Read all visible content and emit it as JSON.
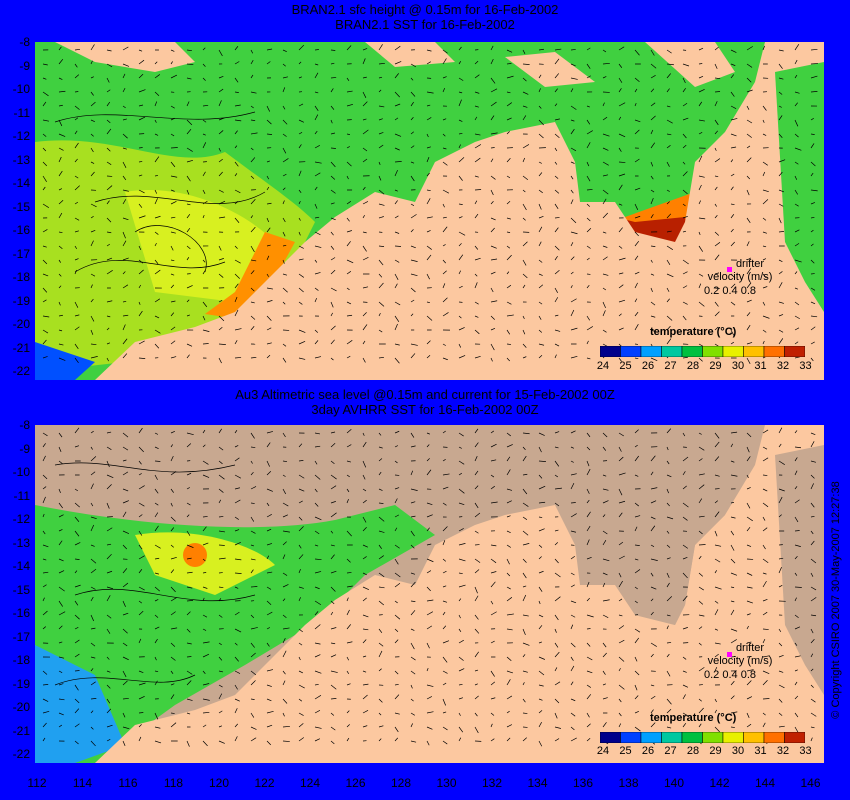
{
  "top_panel": {
    "title_line1": "BRAN2.1 sfc height @ 0.15m for 16-Feb-2002",
    "title_line2": "BRAN2.1 SST for 16-Feb-2002"
  },
  "bottom_panel": {
    "title_line1": "Au3 Altimetric sea level  @0.15m and current for 15-Feb-2002 00Z",
    "title_line2": "3day AVHRR SST for 16-Feb-2002 00Z"
  },
  "latitudes": [
    "-8",
    "-9",
    "-10",
    "-11",
    "-12",
    "-13",
    "-14",
    "-15",
    "-16",
    "-17",
    "-18",
    "-19",
    "-20",
    "-21",
    "-22"
  ],
  "longitudes": [
    "112",
    "114",
    "116",
    "118",
    "120",
    "122",
    "124",
    "126",
    "128",
    "130",
    "132",
    "134",
    "136",
    "138",
    "140",
    "142",
    "144",
    "146"
  ],
  "legend": {
    "title": "temperature (°C)",
    "ticks": [
      "24",
      "25",
      "26",
      "27",
      "28",
      "29",
      "30",
      "31",
      "32",
      "33"
    ],
    "colors": [
      "#00008b",
      "#0040ff",
      "#00a0ff",
      "#00c8a0",
      "#00c040",
      "#80e000",
      "#e8f000",
      "#ffc000",
      "#ff7000",
      "#c02000"
    ]
  },
  "drifter": {
    "label1": "drifter",
    "label2": "velocity (m/s)",
    "values": "0.2 0.4 0.8",
    "marker_color": "#ff00ff"
  },
  "copyright": "© Copyright CSIRO 2007  30-May-2007 12:27:38",
  "colors": {
    "land": "#fcc8a0",
    "missing": "#c8a890",
    "background": "#0000ff"
  }
}
